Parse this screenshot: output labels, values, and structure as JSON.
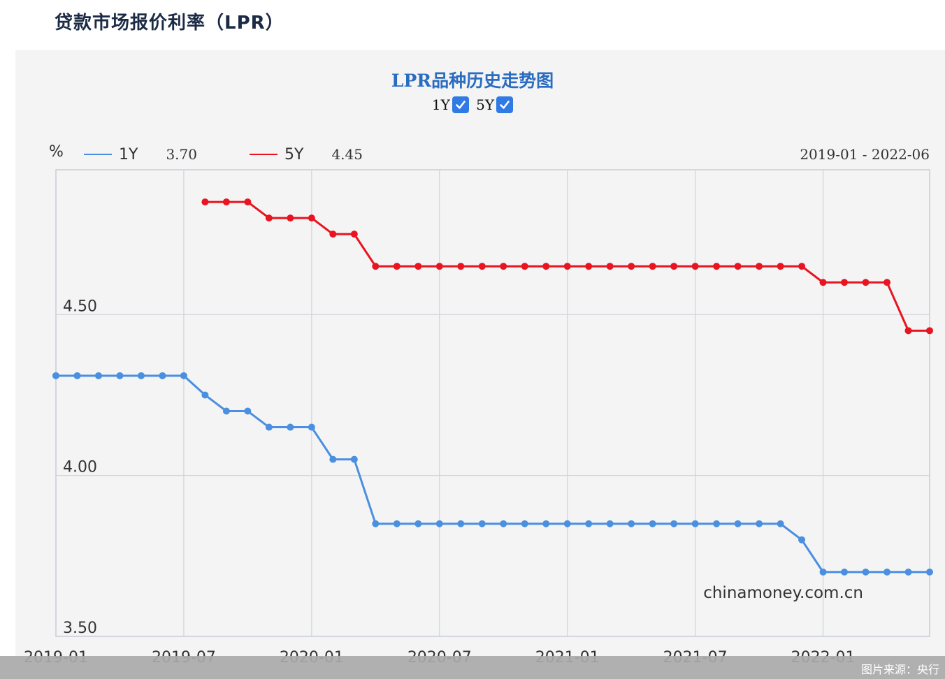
{
  "page": {
    "heading": "贷款市场报价利率（LPR）",
    "credit": "图片来源：央行"
  },
  "chart_data": {
    "type": "line",
    "title": "LPR品种历史走势图",
    "toggles": [
      {
        "label": "1Y",
        "checked": true
      },
      {
        "label": "5Y",
        "checked": true
      }
    ],
    "unit": "%",
    "range_text": "2019-01 - 2022-06",
    "watermark": "chinamoney.com.cn",
    "ylim": [
      3.5,
      4.95
    ],
    "yticks": [
      3.5,
      4.0,
      4.5
    ],
    "ytick_labels": [
      "3.50",
      "4.00",
      "4.50"
    ],
    "xlim": [
      "2019-01",
      "2022-06"
    ],
    "xticks": [
      "2019-01",
      "2019-07",
      "2020-01",
      "2020-07",
      "2021-01",
      "2021-07",
      "2022-01"
    ],
    "grid": true,
    "legend_position": "top-left",
    "x": [
      "2019-01",
      "2019-02",
      "2019-03",
      "2019-04",
      "2019-05",
      "2019-06",
      "2019-07",
      "2019-08",
      "2019-09",
      "2019-10",
      "2019-11",
      "2019-12",
      "2020-01",
      "2020-02",
      "2020-03",
      "2020-04",
      "2020-05",
      "2020-06",
      "2020-07",
      "2020-08",
      "2020-09",
      "2020-10",
      "2020-11",
      "2020-12",
      "2021-01",
      "2021-02",
      "2021-03",
      "2021-04",
      "2021-05",
      "2021-06",
      "2021-07",
      "2021-08",
      "2021-09",
      "2021-10",
      "2021-11",
      "2021-12",
      "2022-01",
      "2022-02",
      "2022-03",
      "2022-04",
      "2022-05",
      "2022-06"
    ],
    "series": [
      {
        "name": "1Y",
        "latest": "3.70",
        "color": "#4a8fe0",
        "values": [
          4.31,
          4.31,
          4.31,
          4.31,
          4.31,
          4.31,
          4.31,
          4.25,
          4.2,
          4.2,
          4.15,
          4.15,
          4.15,
          4.05,
          4.05,
          3.85,
          3.85,
          3.85,
          3.85,
          3.85,
          3.85,
          3.85,
          3.85,
          3.85,
          3.85,
          3.85,
          3.85,
          3.85,
          3.85,
          3.85,
          3.85,
          3.85,
          3.85,
          3.85,
          3.85,
          3.8,
          3.7,
          3.7,
          3.7,
          3.7,
          3.7,
          3.7
        ]
      },
      {
        "name": "5Y",
        "latest": "4.45",
        "color": "#e8141f",
        "values": [
          null,
          null,
          null,
          null,
          null,
          null,
          null,
          4.85,
          4.85,
          4.85,
          4.8,
          4.8,
          4.8,
          4.75,
          4.75,
          4.65,
          4.65,
          4.65,
          4.65,
          4.65,
          4.65,
          4.65,
          4.65,
          4.65,
          4.65,
          4.65,
          4.65,
          4.65,
          4.65,
          4.65,
          4.65,
          4.65,
          4.65,
          4.65,
          4.65,
          4.65,
          4.6,
          4.6,
          4.6,
          4.6,
          4.45,
          4.45
        ]
      }
    ]
  }
}
